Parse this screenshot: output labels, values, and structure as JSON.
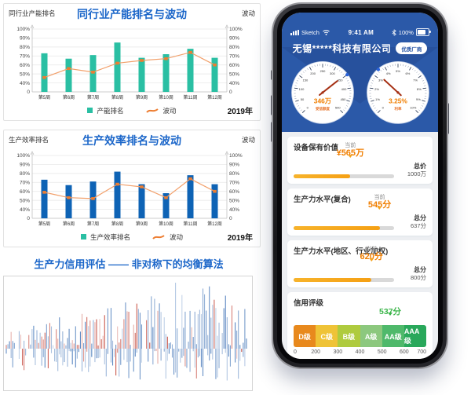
{
  "colors": {
    "title_blue": "#1B66C9",
    "app_blue": "#2B59A8",
    "teal_bar": "#2ABFA3",
    "blue_bar": "#0E63B5",
    "line_orange": "#ED7D31",
    "value_orange": "#F07E00",
    "progress_orange": "#F5A31F",
    "rating_green": "#3BB54A",
    "spike_red": "#C0392B",
    "spike_blue": "#3A6FB5"
  },
  "chart_data": [
    {
      "type": "bar+line",
      "title": "同行业产能排名与波动",
      "left_axis_label": "同行业产能排名",
      "right_axis_label": "波动",
      "year_label": "2019年",
      "categories": [
        "第5周",
        "第6周",
        "第7周",
        "第8周",
        "第9周",
        "第10周",
        "第11周",
        "第12周"
      ],
      "y_ticks": [
        "100%",
        "90%",
        "80%",
        "70%",
        "60%",
        "50%",
        "40%",
        "0"
      ],
      "bar": {
        "name": "产能排名",
        "color": "#2ABFA3",
        "values": [
          73,
          67,
          71,
          85,
          68,
          72,
          78,
          68
        ]
      },
      "line": {
        "name": "波动",
        "color": "#ED7D31",
        "stroke": "#F2A06B",
        "values": [
          46,
          56,
          52,
          62,
          65,
          67,
          74,
          60
        ]
      },
      "legend_square_color": "#2ABFA3"
    },
    {
      "type": "bar+line",
      "title": "生产效率排名与波动",
      "left_axis_label": "生产效率排名",
      "right_axis_label": "波动",
      "year_label": "2019年",
      "categories": [
        "第5周",
        "第6周",
        "第7周",
        "第8周",
        "第9周",
        "第10周",
        "第11周",
        "第12周"
      ],
      "y_ticks": [
        "100%",
        "90%",
        "80%",
        "70%",
        "60%",
        "50%",
        "40%",
        "0"
      ],
      "bar": {
        "name": "生产效率排名",
        "color": "#0E63B5",
        "values": [
          73,
          67,
          71,
          82,
          68,
          58,
          78,
          68
        ]
      },
      "line": {
        "name": "波动",
        "color": "#ED7D31",
        "stroke": "#F2A06B",
        "values": [
          59,
          53,
          52,
          68,
          65,
          53,
          74,
          60
        ]
      },
      "legend_square_color": "#2ABFA3"
    },
    {
      "type": "spikes",
      "title": "生产力信用评估 —— 非对称下的均衡算法",
      "count": 150,
      "seed": 20190941,
      "positive_color": "#C0392B",
      "negative_color": "#3A6FB5"
    }
  ],
  "phone": {
    "status": {
      "carrier": "Sketch",
      "time": "9:41 AM",
      "battery": "100%"
    },
    "header": {
      "company": "无锡*****科技有限公司",
      "badge": "优质厂商"
    },
    "gauges": [
      {
        "value": "346万",
        "label": "受信额度",
        "min": 0,
        "max": 500,
        "reading": 346,
        "marker": 350,
        "tick_labels": [
          "0",
          "50",
          "100",
          "150",
          "200",
          "250",
          "300",
          "350",
          "400",
          "450",
          "500"
        ]
      },
      {
        "value": "3.25%",
        "label": "利率",
        "min": 0,
        "max": 10,
        "reading": 3.25,
        "marker": 3.5,
        "tick_labels": [
          "0",
          "1%",
          "2%",
          "3%",
          "4%",
          "5%",
          "6%",
          "7%",
          "8%",
          "9%",
          "10%"
        ]
      }
    ],
    "cards": [
      {
        "title": "设备保有价值",
        "current_label": "当前",
        "current_value": "¥565万",
        "percent": 56.5,
        "total_label": "总价",
        "total_value": "1000万"
      },
      {
        "title": "生产力水平(复合)",
        "current_label": "当前",
        "current_value": "545分",
        "percent": 85.6,
        "total_label": "总分",
        "total_value": "637分"
      },
      {
        "title": "生产力水平(地区、行业加权)",
        "current_label": "当前",
        "current_value": "620分",
        "percent": 77.5,
        "total_label": "总分",
        "total_value": "800分"
      }
    ],
    "rating": {
      "title": "信用评级",
      "score": "537分",
      "score_percent": 72.8,
      "segments": [
        {
          "label": "D级",
          "color": "#E8891D"
        },
        {
          "label": "C级",
          "color": "#EFC337"
        },
        {
          "label": "B级",
          "color": "#AFCB3E"
        },
        {
          "label": "A级",
          "color": "#8CC87E"
        },
        {
          "label": "AA级",
          "color": "#4FB96B"
        },
        {
          "label": "AAA级",
          "color": "#29A85B"
        }
      ],
      "axis_labels": [
        "0",
        "200",
        "300",
        "400",
        "500",
        "600",
        "700"
      ]
    }
  }
}
